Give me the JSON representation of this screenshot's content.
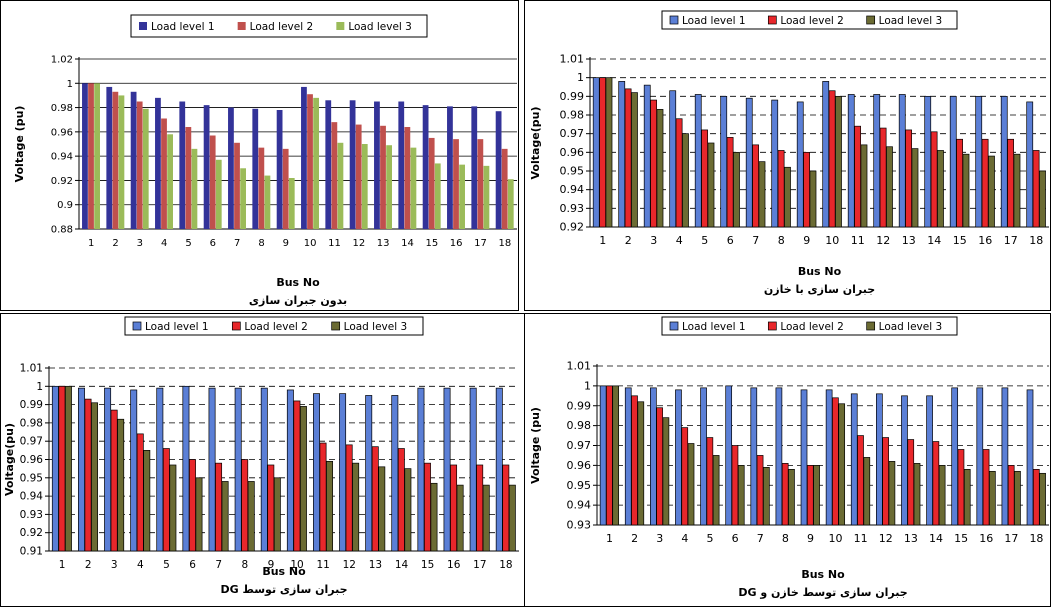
{
  "chart_data": [
    {
      "type": "bar",
      "title": "",
      "subtitle": "بدون جبران سازی",
      "xlabel": "Bus No",
      "ylabel": "Voltage (pu)",
      "ylim": [
        0.88,
        1.02
      ],
      "yticks": [
        0.88,
        0.9,
        0.92,
        0.94,
        0.96,
        0.98,
        1,
        1.02
      ],
      "grid": "solid",
      "legend": "top",
      "categories": [
        "1",
        "2",
        "3",
        "4",
        "5",
        "6",
        "7",
        "8",
        "9",
        "10",
        "11",
        "12",
        "13",
        "14",
        "15",
        "16",
        "17",
        "18"
      ],
      "series": [
        {
          "name": "Load level 1",
          "color": "#333399",
          "values": [
            1.0,
            0.997,
            0.993,
            0.988,
            0.985,
            0.982,
            0.98,
            0.979,
            0.978,
            0.997,
            0.986,
            0.986,
            0.985,
            0.985,
            0.982,
            0.981,
            0.981,
            0.977
          ]
        },
        {
          "name": "Load level 2",
          "color": "#c0504d",
          "values": [
            1.0,
            0.993,
            0.985,
            0.971,
            0.964,
            0.957,
            0.951,
            0.947,
            0.946,
            0.991,
            0.968,
            0.966,
            0.965,
            0.964,
            0.955,
            0.954,
            0.954,
            0.946
          ]
        },
        {
          "name": "Load level 3",
          "color": "#9bbb59",
          "values": [
            1.0,
            0.99,
            0.979,
            0.958,
            0.946,
            0.937,
            0.93,
            0.924,
            0.922,
            0.988,
            0.951,
            0.95,
            0.949,
            0.947,
            0.934,
            0.933,
            0.932,
            0.921
          ]
        }
      ]
    },
    {
      "type": "bar",
      "title": "",
      "subtitle": "جبران سازی با خازن",
      "xlabel": "Bus No",
      "ylabel": "Voltage(pu)",
      "ylim": [
        0.92,
        1.01
      ],
      "yticks": [
        0.92,
        0.93,
        0.94,
        0.95,
        0.96,
        0.97,
        0.98,
        0.99,
        1,
        1.01
      ],
      "grid": "dashed",
      "legend": "top",
      "categories": [
        "1",
        "2",
        "3",
        "4",
        "5",
        "6",
        "7",
        "8",
        "9",
        "10",
        "11",
        "12",
        "13",
        "14",
        "15",
        "16",
        "17",
        "18"
      ],
      "series": [
        {
          "name": "Load level 1",
          "color": "#5b7fd6",
          "values": [
            1.0,
            0.998,
            0.996,
            0.993,
            0.991,
            0.99,
            0.989,
            0.988,
            0.987,
            0.998,
            0.991,
            0.991,
            0.991,
            0.99,
            0.99,
            0.99,
            0.99,
            0.987
          ]
        },
        {
          "name": "Load level 2",
          "color": "#e8272b",
          "values": [
            1.0,
            0.994,
            0.988,
            0.978,
            0.972,
            0.968,
            0.964,
            0.961,
            0.96,
            0.993,
            0.974,
            0.973,
            0.972,
            0.971,
            0.967,
            0.967,
            0.967,
            0.961
          ]
        },
        {
          "name": "Load level 3",
          "color": "#6b6b33",
          "values": [
            1.0,
            0.992,
            0.983,
            0.97,
            0.965,
            0.96,
            0.955,
            0.952,
            0.95,
            0.99,
            0.964,
            0.963,
            0.962,
            0.961,
            0.959,
            0.958,
            0.959,
            0.95
          ]
        }
      ]
    },
    {
      "type": "bar",
      "title": "",
      "subtitle": "جبران سازی توسط DG",
      "xlabel": "Bus No",
      "ylabel": "Voltage(pu)",
      "ylim": [
        0.91,
        1.01
      ],
      "yticks": [
        0.91,
        0.92,
        0.93,
        0.94,
        0.95,
        0.96,
        0.97,
        0.98,
        0.99,
        1,
        1.01
      ],
      "grid": "dashed",
      "legend": "top",
      "categories": [
        "1",
        "2",
        "3",
        "4",
        "5",
        "6",
        "7",
        "8",
        "9",
        "10",
        "11",
        "12",
        "13",
        "14",
        "15",
        "16",
        "17",
        "18"
      ],
      "series": [
        {
          "name": "Load level 1",
          "color": "#5b7fd6",
          "values": [
            1.0,
            0.999,
            0.999,
            0.998,
            0.999,
            1.0,
            0.999,
            0.999,
            0.999,
            0.998,
            0.996,
            0.996,
            0.995,
            0.995,
            0.999,
            0.999,
            0.999,
            0.999
          ]
        },
        {
          "name": "Load level 2",
          "color": "#e8272b",
          "values": [
            1.0,
            0.993,
            0.987,
            0.974,
            0.966,
            0.96,
            0.958,
            0.96,
            0.957,
            0.992,
            0.969,
            0.968,
            0.967,
            0.966,
            0.958,
            0.957,
            0.957,
            0.957
          ]
        },
        {
          "name": "Load level 3",
          "color": "#6b6b33",
          "values": [
            1.0,
            0.991,
            0.982,
            0.965,
            0.957,
            0.95,
            0.948,
            0.948,
            0.95,
            0.989,
            0.959,
            0.958,
            0.956,
            0.955,
            0.947,
            0.946,
            0.946,
            0.946
          ]
        }
      ]
    },
    {
      "type": "bar",
      "title": "",
      "subtitle": "جبران سازی توسط خازن و DG",
      "xlabel": "Bus No",
      "ylabel": "Voltage (pu)",
      "ylim": [
        0.93,
        1.01
      ],
      "yticks": [
        0.93,
        0.94,
        0.95,
        0.96,
        0.97,
        0.98,
        0.99,
        1,
        1.01
      ],
      "grid": "dashed",
      "legend": "top",
      "categories": [
        "1",
        "2",
        "3",
        "4",
        "5",
        "6",
        "7",
        "8",
        "9",
        "10",
        "11",
        "12",
        "13",
        "14",
        "15",
        "16",
        "17",
        "18"
      ],
      "series": [
        {
          "name": "Load level 1",
          "color": "#5b7fd6",
          "values": [
            1.0,
            0.999,
            0.999,
            0.998,
            0.999,
            1.0,
            0.999,
            0.999,
            0.998,
            0.998,
            0.996,
            0.996,
            0.995,
            0.995,
            0.999,
            0.999,
            0.999,
            0.998
          ]
        },
        {
          "name": "Load level 2",
          "color": "#e8272b",
          "values": [
            1.0,
            0.995,
            0.989,
            0.979,
            0.974,
            0.97,
            0.965,
            0.961,
            0.96,
            0.994,
            0.975,
            0.974,
            0.973,
            0.972,
            0.968,
            0.968,
            0.96,
            0.958
          ]
        },
        {
          "name": "Load level 3",
          "color": "#6b6b33",
          "values": [
            1.0,
            0.992,
            0.984,
            0.971,
            0.965,
            0.96,
            0.959,
            0.958,
            0.96,
            0.991,
            0.964,
            0.962,
            0.961,
            0.96,
            0.958,
            0.957,
            0.957,
            0.956
          ]
        }
      ]
    }
  ]
}
